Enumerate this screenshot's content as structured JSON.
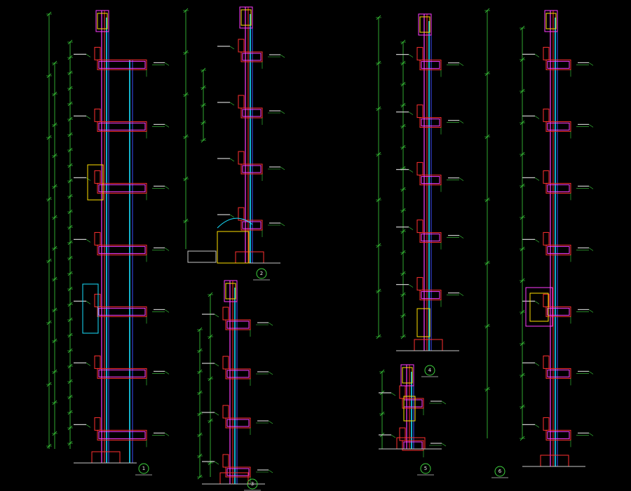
{
  "sections": [
    {
      "label": "1"
    },
    {
      "label": "2"
    },
    {
      "label": "3"
    },
    {
      "label": "4"
    },
    {
      "label": "5"
    },
    {
      "label": "6"
    }
  ]
}
